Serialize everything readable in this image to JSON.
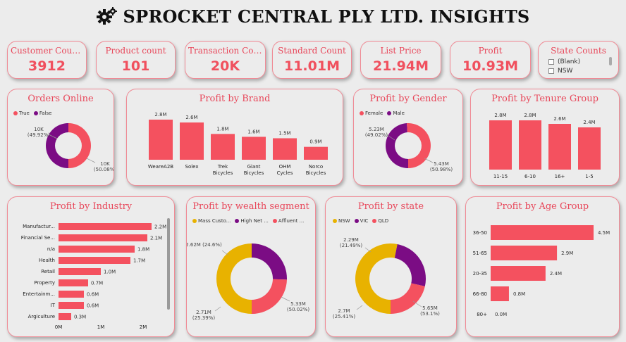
{
  "header": {
    "title": "SPROCKET CENTRAL PLY LTD. INSIGHTS",
    "icon": "gears-icon"
  },
  "colors": {
    "accent": "#f4515f",
    "purple": "#7b0c84",
    "gold": "#e8b200",
    "label": "#e8475a"
  },
  "kpis": [
    {
      "label": "Customer Counts",
      "value": "3912"
    },
    {
      "label": "Product count",
      "value": "101"
    },
    {
      "label": "Transaction Cou...",
      "value": "20K"
    },
    {
      "label": "Standard Count",
      "value": "11.01M"
    },
    {
      "label": "List Price",
      "value": "21.94M"
    },
    {
      "label": "Profit",
      "value": "10.93M"
    }
  ],
  "state_filter": {
    "label": "State Counts",
    "options": [
      "(Blank)",
      "NSW"
    ]
  },
  "chart_data": [
    {
      "id": "orders_online",
      "type": "pie",
      "donut": true,
      "title": "Orders Online",
      "legend": [
        "True",
        "False"
      ],
      "slices": [
        {
          "name": "False",
          "value": 10,
          "label": "10K",
          "pct": "(49.92%)"
        },
        {
          "name": "True",
          "value": 10,
          "label": "10K",
          "pct": "(50.08%)"
        }
      ],
      "pct_values": [
        49.92,
        50.08
      ]
    },
    {
      "id": "profit_brand",
      "type": "bar",
      "title": "Profit by Brand",
      "categories": [
        "WeareA2B",
        "Solex",
        "Trek Bicycles",
        "Giant Bicycles",
        "OHM Cycles",
        "Norco Bicycles"
      ],
      "category_lines": [
        [
          "WeareA2B"
        ],
        [
          "Solex"
        ],
        [
          "Trek",
          "Bicycles"
        ],
        [
          "Giant",
          "Bicycles"
        ],
        [
          "OHM",
          "Cycles"
        ],
        [
          "Norco",
          "Bicycles"
        ]
      ],
      "values": [
        2.8,
        2.6,
        1.8,
        1.6,
        1.5,
        0.9
      ],
      "labels": [
        "2.8M",
        "2.6M",
        "1.8M",
        "1.6M",
        "1.5M",
        "0.9M"
      ]
    },
    {
      "id": "profit_gender",
      "type": "pie",
      "donut": true,
      "title": "Profit by Gender",
      "legend": [
        "Female",
        "Male"
      ],
      "slices": [
        {
          "name": "Male",
          "value": 5.23,
          "label": "5.23M",
          "pct": "(49.02%)"
        },
        {
          "name": "Female",
          "value": 5.43,
          "label": "5.43M",
          "pct": "(50.98%)"
        }
      ]
    },
    {
      "id": "profit_tenure",
      "type": "bar",
      "title": "Profit by Tenure Group",
      "categories": [
        "11-15",
        "6-10",
        "16+",
        "1-5"
      ],
      "values": [
        2.8,
        2.8,
        2.6,
        2.4
      ],
      "labels": [
        "2.8M",
        "2.8M",
        "2.6M",
        "2.4M"
      ]
    },
    {
      "id": "profit_industry",
      "type": "bar",
      "orientation": "horizontal",
      "title": "Profit by Industry",
      "categories": [
        "Manufactur...",
        "Financial Se...",
        "n/a",
        "Health",
        "Retail",
        "Property",
        "Entertainm...",
        "IT",
        "Argiculture"
      ],
      "values": [
        2.2,
        2.1,
        1.8,
        1.7,
        1.0,
        0.7,
        0.6,
        0.6,
        0.3
      ],
      "labels": [
        "2.2M",
        "2.1M",
        "1.8M",
        "1.7M",
        "1.0M",
        "0.7M",
        "0.6M",
        "0.6M",
        "0.3M"
      ],
      "xticks": [
        "0M",
        "1M",
        "2M"
      ],
      "xlim": [
        0,
        2.5
      ]
    },
    {
      "id": "profit_wealth",
      "type": "pie",
      "donut": true,
      "title": "Profit by wealth segment",
      "legend": [
        "Mass Custo...",
        "High Net ...",
        "Affluent ..."
      ],
      "slices": [
        {
          "name": "Mass Customer",
          "value": 5.33,
          "label": "5.33M",
          "pct": "(50.02%)"
        },
        {
          "name": "High Net Worth",
          "value": 2.71,
          "label": "2.71M",
          "pct": "(25.39%)"
        },
        {
          "name": "Affluent Customer",
          "value": 2.62,
          "label": "2.62M (24.6%)",
          "pct": ""
        }
      ]
    },
    {
      "id": "profit_state",
      "type": "pie",
      "donut": true,
      "title": "Profit by state",
      "legend": [
        "NSW",
        "VIC",
        "QLD"
      ],
      "slices": [
        {
          "name": "NSW",
          "value": 5.65,
          "label": "5.65M",
          "pct": "(53.1%)"
        },
        {
          "name": "VIC",
          "value": 2.7,
          "label": "2.7M",
          "pct": "(25.41%)"
        },
        {
          "name": "QLD",
          "value": 2.29,
          "label": "2.29M",
          "pct": "(21.49%)"
        }
      ]
    },
    {
      "id": "profit_age",
      "type": "bar",
      "orientation": "horizontal",
      "title": "Profit by Age Group",
      "categories": [
        "36-50",
        "51-65",
        "20-35",
        "66-80",
        "80+"
      ],
      "values": [
        4.5,
        2.9,
        2.4,
        0.8,
        0.0
      ],
      "labels": [
        "4.5M",
        "2.9M",
        "2.4M",
        "0.8M",
        "0.0M"
      ]
    }
  ]
}
